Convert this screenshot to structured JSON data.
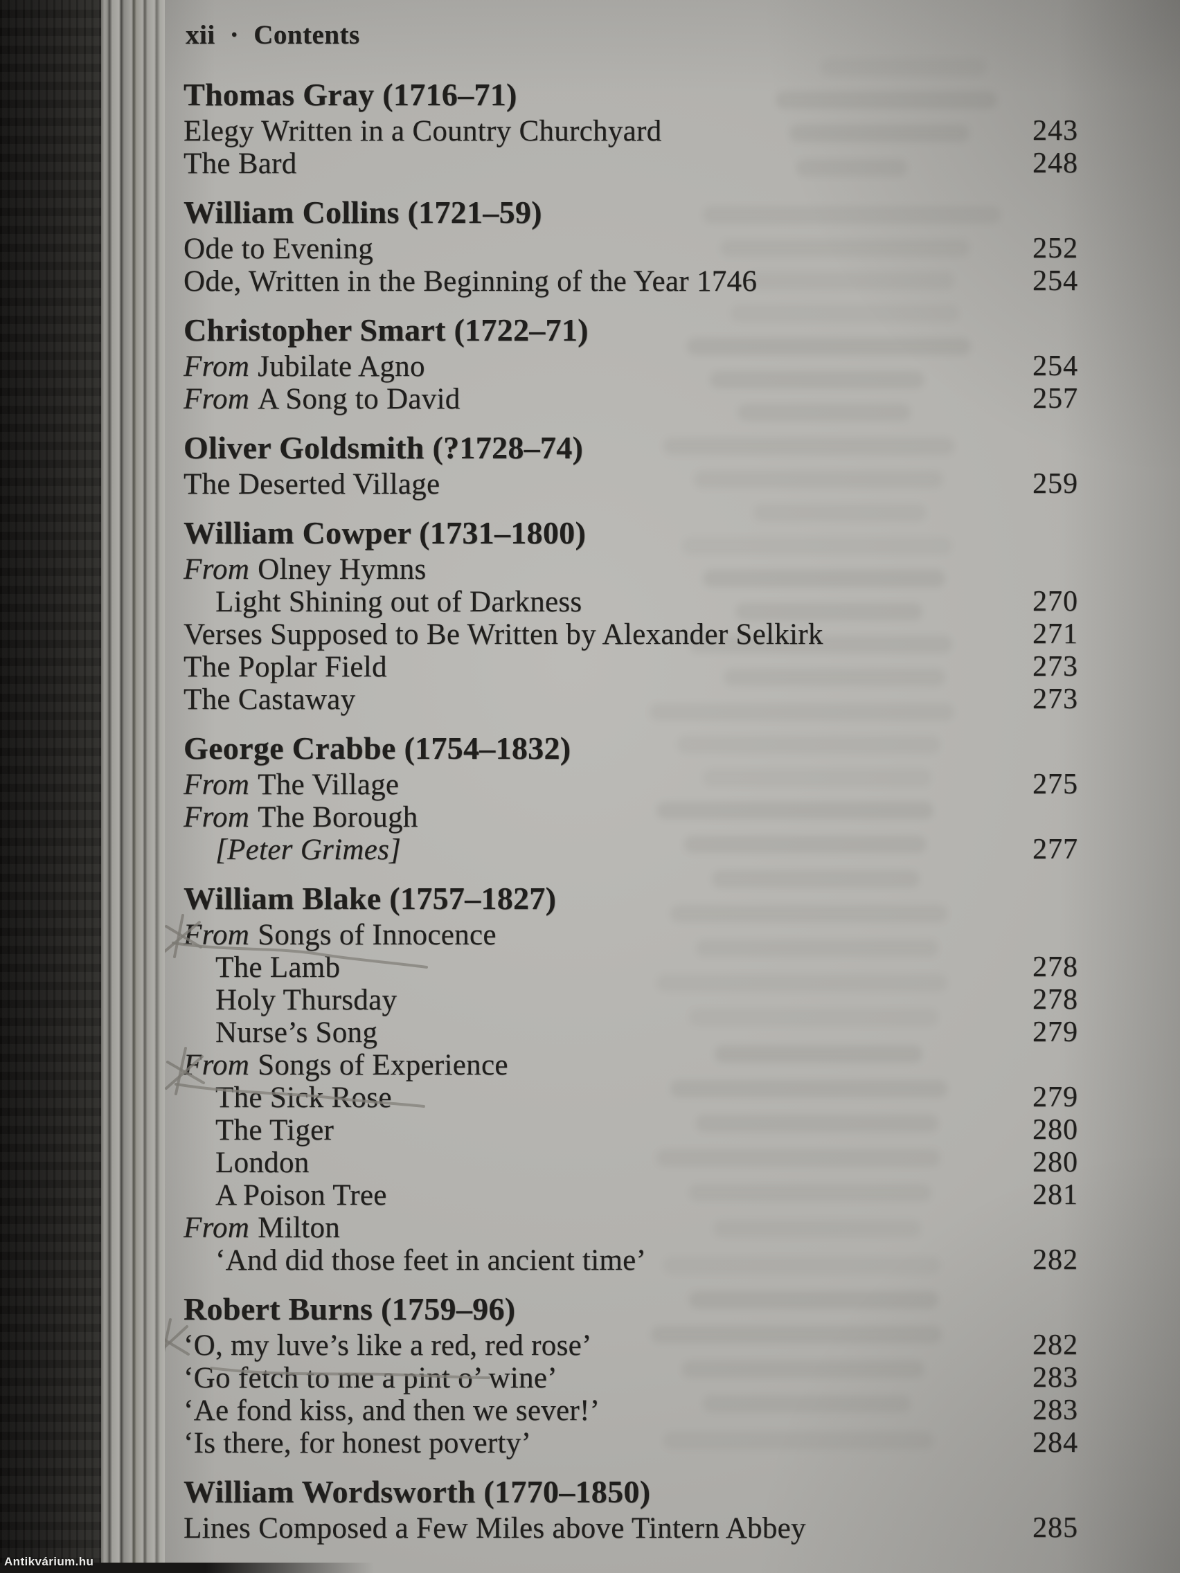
{
  "page_header": {
    "folio": "xii",
    "separator": "·",
    "title": "Contents"
  },
  "watermark": "Antikvárium.hu",
  "colors": {
    "paper": "#b2b1ad",
    "ink": "#201f1d",
    "pencil": "#84827b",
    "wood": "#1c1b19"
  },
  "toc": {
    "sections": [
      {
        "author": "Thomas Gray",
        "dates": "(1716–71)",
        "entries": [
          {
            "label": "Elegy Written in a Country Churchyard",
            "page": "243"
          },
          {
            "label": "The Bard",
            "page": "248"
          }
        ]
      },
      {
        "author": "William Collins",
        "dates": "(1721–59)",
        "entries": [
          {
            "label": "Ode to Evening",
            "page": "252"
          },
          {
            "label": "Ode, Written in the Beginning of the Year 1746",
            "page": "254"
          }
        ]
      },
      {
        "author": "Christopher Smart",
        "dates": "(1722–71)",
        "entries": [
          {
            "prefix": "From",
            "label": "Jubilate Agno",
            "page": "254"
          },
          {
            "prefix": "From",
            "label": "A Song to David",
            "page": "257"
          }
        ]
      },
      {
        "author": "Oliver Goldsmith",
        "dates": "(?1728–74)",
        "entries": [
          {
            "label": "The Deserted Village",
            "page": "259"
          }
        ]
      },
      {
        "author": "William Cowper",
        "dates": "(1731–1800)",
        "entries": [
          {
            "prefix": "From",
            "label": "Olney Hymns"
          },
          {
            "label": "Light Shining out of Darkness",
            "page": "270",
            "indent": true
          },
          {
            "label": "Verses Supposed to Be Written by Alexander Selkirk",
            "page": "271"
          },
          {
            "label": "The Poplar Field",
            "page": "273"
          },
          {
            "label": "The Castaway",
            "page": "273"
          }
        ]
      },
      {
        "author": "George Crabbe",
        "dates": "(1754–1832)",
        "entries": [
          {
            "prefix": "From",
            "label": "The Village",
            "page": "275"
          },
          {
            "prefix": "From",
            "label": "The Borough"
          },
          {
            "label": "[Peter Grimes]",
            "page": "277",
            "indent": true,
            "italic": true
          }
        ]
      },
      {
        "author": "William Blake",
        "dates": "(1757–1827)",
        "entries": [
          {
            "prefix": "From",
            "label": "Songs of Innocence"
          },
          {
            "label": "The Lamb",
            "page": "278",
            "indent": true
          },
          {
            "label": "Holy Thursday",
            "page": "278",
            "indent": true
          },
          {
            "label": "Nurse’s Song",
            "page": "279",
            "indent": true
          },
          {
            "prefix": "From",
            "label": "Songs of Experience"
          },
          {
            "label": "The Sick Rose",
            "page": "279",
            "indent": true
          },
          {
            "label": "The Tiger",
            "page": "280",
            "indent": true
          },
          {
            "label": "London",
            "page": "280",
            "indent": true
          },
          {
            "label": "A Poison Tree",
            "page": "281",
            "indent": true
          },
          {
            "prefix": "From",
            "label": "Milton"
          },
          {
            "label": "‘And did those feet in ancient time’",
            "page": "282",
            "indent": true
          }
        ]
      },
      {
        "author": "Robert Burns",
        "dates": "(1759–96)",
        "entries": [
          {
            "label": "‘O, my luve’s like a red, red rose’",
            "page": "282"
          },
          {
            "label": "‘Go fetch to me a pint o’ wine’",
            "page": "283"
          },
          {
            "label": "‘Ae fond kiss, and then we sever!’",
            "page": "283"
          },
          {
            "label": "‘Is there, for honest poverty’",
            "page": "284"
          }
        ]
      },
      {
        "author": "William Wordsworth",
        "dates": "(1770–1850)",
        "entries": [
          {
            "label": "Lines Composed a Few Miles above Tintern Abbey",
            "page": "285"
          }
        ]
      }
    ]
  },
  "annotations": [
    {
      "type": "pencil-asterisk-with-underline",
      "near_entry": "From Songs of Innocence"
    },
    {
      "type": "pencil-asterisk-with-underline",
      "near_entry": "From Songs of Experience"
    },
    {
      "type": "pencil-asterisk-with-underline",
      "near_entry": "‘O, my luve’s like a red, red rose’"
    }
  ]
}
